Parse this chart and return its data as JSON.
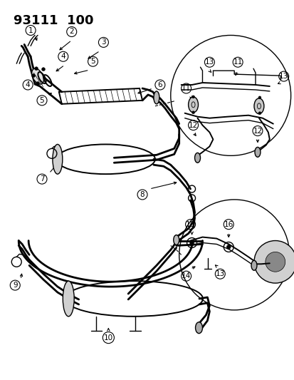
{
  "title": "93111  100",
  "bg_color": "#ffffff",
  "lc": "#000000",
  "title_fontsize": 13,
  "label_fontsize": 7.5,
  "label_r": 0.017,
  "figsize": [
    4.14,
    5.33
  ],
  "dpi": 100
}
